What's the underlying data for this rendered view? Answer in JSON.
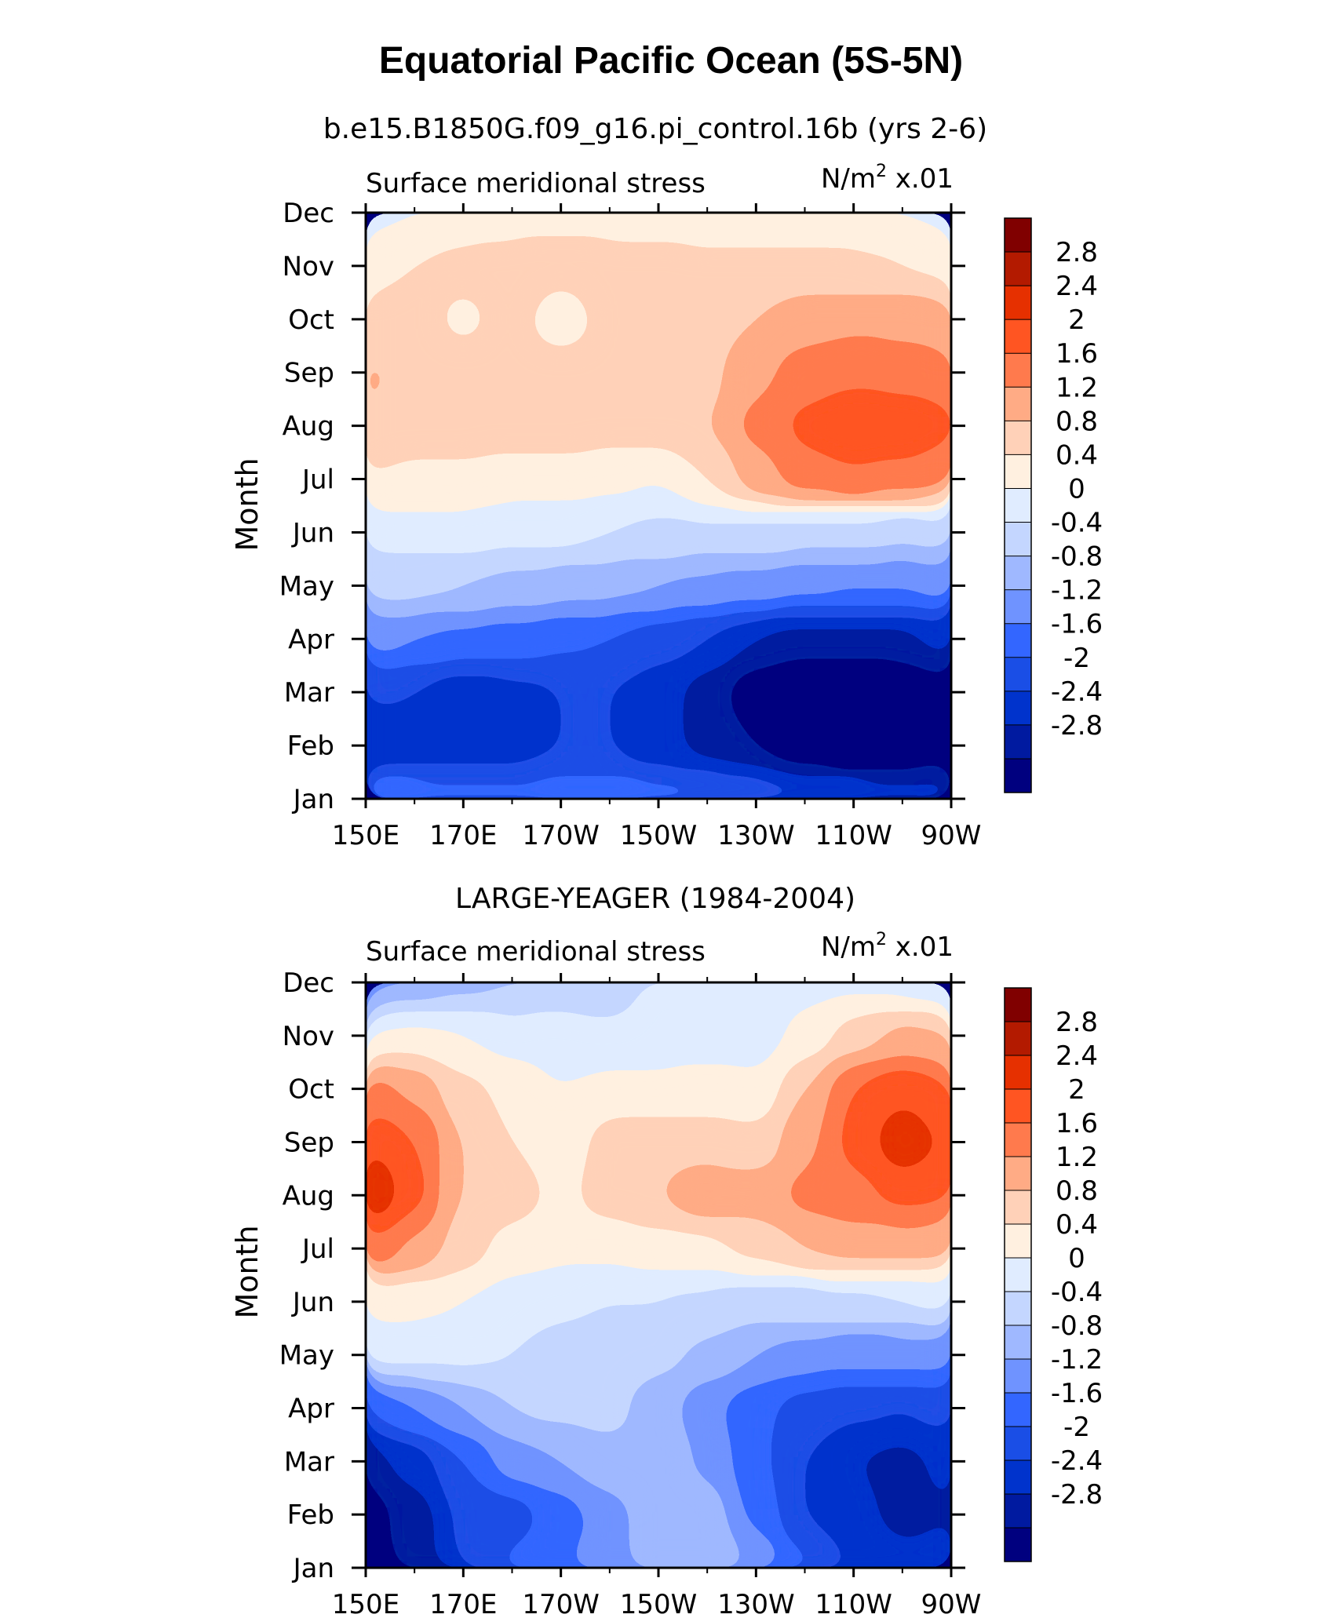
{
  "chart_data": {
    "type": "heatmap",
    "title": "Equatorial Pacific Ocean (5S-5N)",
    "x_tick_labels": [
      "150E",
      "170E",
      "170W",
      "150W",
      "130W",
      "110W",
      "90W"
    ],
    "y_tick_labels": [
      "Jan",
      "Feb",
      "Mar",
      "Apr",
      "May",
      "Jun",
      "Jul",
      "Aug",
      "Sep",
      "Oct",
      "Nov",
      "Dec"
    ],
    "contour_levels": [
      -2.8,
      -2.4,
      -2,
      -1.6,
      -1.2,
      -0.8,
      -0.4,
      0,
      0.4,
      0.8,
      1.2,
      1.6,
      2,
      2.4,
      2.8
    ],
    "colorbar_labels": [
      "2.8",
      "2.4",
      "2",
      "1.6",
      "1.2",
      "0.8",
      "0.4",
      "0",
      "-0.4",
      "-0.8",
      "-1.2",
      "-1.6",
      "-2",
      "-2.4",
      "-2.8"
    ],
    "colors": [
      "#00007f",
      "#001aa0",
      "#0033cc",
      "#1a4ee6",
      "#3366ff",
      "#6f93ff",
      "#9fb8ff",
      "#c4d6ff",
      "#e0ecff",
      "#fff0e0",
      "#ffd1b8",
      "#ffab85",
      "#ff7a4d",
      "#ff5522",
      "#e63000",
      "#b31a00",
      "#800000"
    ],
    "panels": [
      {
        "subtitle": "b.e15.B1850G.f09_g16.pi_control.16b (yrs 2-6)",
        "left_label": "Surface meridional stress",
        "right_label": "N/m",
        "right_label_sup": "2",
        "right_label_suffix": " x.01",
        "ylabel": "Month",
        "grid_values": [
          [
            -1.2,
            -1.3,
            -1.35,
            -1.45,
            -1.3,
            -1.25,
            -1.35,
            -1.45,
            -1.6,
            -1.8,
            -1.9,
            -2.0,
            -2.1
          ],
          [
            -2.4,
            -2.2,
            -2.3,
            -2.2,
            -2.0,
            -2.0,
            -2.3,
            -2.5,
            -2.8,
            -3.2,
            -3.4,
            -3.3,
            -3.0
          ],
          [
            -1.9,
            -2.0,
            -2.3,
            -2.1,
            -2.0,
            -2.0,
            -2.2,
            -2.6,
            -3.1,
            -3.4,
            -3.4,
            -3.3,
            -2.9
          ],
          [
            -1.0,
            -1.2,
            -1.3,
            -1.4,
            -1.5,
            -1.6,
            -1.8,
            -2.0,
            -2.4,
            -2.6,
            -2.6,
            -2.5,
            -2.2
          ],
          [
            -0.3,
            -0.3,
            -0.4,
            -0.5,
            -0.6,
            -0.7,
            -0.8,
            -0.9,
            -1.0,
            -1.1,
            -1.2,
            -1.2,
            -1.0
          ],
          [
            0.2,
            0.2,
            0.2,
            0.1,
            0.1,
            0.0,
            -0.1,
            -0.1,
            -0.1,
            -0.2,
            -0.2,
            -0.3,
            -0.2
          ],
          [
            0.8,
            0.7,
            0.7,
            0.6,
            0.6,
            0.5,
            0.4,
            0.8,
            1.4,
            1.8,
            1.9,
            1.8,
            1.6
          ],
          [
            1.2,
            1.0,
            1.0,
            1.0,
            1.0,
            1.0,
            1.0,
            1.2,
            1.7,
            2.1,
            2.4,
            2.4,
            2.1
          ],
          [
            1.3,
            1.0,
            1.0,
            1.0,
            1.0,
            1.0,
            1.0,
            1.1,
            1.5,
            1.8,
            1.9,
            1.8,
            1.7
          ],
          [
            1.0,
            1.0,
            0.7,
            1.0,
            0.5,
            1.0,
            1.0,
            1.0,
            1.2,
            1.4,
            1.5,
            1.5,
            1.4
          ],
          [
            0.6,
            0.8,
            0.9,
            0.9,
            1.0,
            1.0,
            1.0,
            0.9,
            0.9,
            0.9,
            0.9,
            0.8,
            0.7
          ],
          [
            0.3,
            0.4,
            0.6,
            0.7,
            0.7,
            0.6,
            0.6,
            0.5,
            0.5,
            0.5,
            0.4,
            0.4,
            0.3
          ]
        ]
      },
      {
        "subtitle": "LARGE-YEAGER (1984-2004)",
        "left_label": "Surface meridional stress",
        "right_label": "N/m",
        "right_label_sup": "2",
        "right_label_suffix": " x.01",
        "ylabel": "Month",
        "grid_values": [
          [
            -3.0,
            -2.7,
            -2.0,
            -1.5,
            -1.2,
            -1.0,
            -0.5,
            -0.3,
            -0.8,
            -1.5,
            -2.0,
            -2.3,
            -2.2
          ],
          [
            -3.0,
            -2.6,
            -1.9,
            -1.8,
            -1.4,
            -1.0,
            -0.5,
            -0.6,
            -1.3,
            -2.0,
            -2.3,
            -2.5,
            -2.4
          ],
          [
            -2.6,
            -2.2,
            -1.6,
            -1.0,
            -0.8,
            -0.5,
            -0.4,
            -0.9,
            -1.5,
            -2.0,
            -2.4,
            -2.5,
            -2.3
          ],
          [
            -1.6,
            -1.2,
            -0.8,
            -0.4,
            -0.3,
            -0.3,
            -0.6,
            -1.1,
            -1.5,
            -1.8,
            -1.9,
            -2.0,
            -1.8
          ],
          [
            0.1,
            0.1,
            0.1,
            0.0,
            -0.2,
            -0.3,
            -0.3,
            -0.5,
            -0.8,
            -1.0,
            -1.1,
            -1.1,
            -1.0
          ],
          [
            0.6,
            0.5,
            0.4,
            0.2,
            0.1,
            0.0,
            0.0,
            -0.1,
            -0.2,
            -0.2,
            -0.1,
            0.0,
            0.1
          ],
          [
            2.0,
            1.5,
            1.0,
            0.6,
            0.5,
            0.5,
            0.6,
            0.7,
            0.9,
            1.2,
            1.3,
            1.3,
            1.3
          ],
          [
            3.0,
            2.1,
            1.2,
            1.0,
            0.7,
            1.0,
            1.2,
            1.5,
            1.4,
            1.7,
            1.9,
            2.1,
            2.0
          ],
          [
            2.4,
            2.0,
            1.2,
            0.8,
            0.5,
            1.0,
            1.1,
            1.0,
            0.9,
            1.5,
            2.1,
            2.7,
            2.3
          ],
          [
            1.8,
            1.5,
            0.9,
            0.7,
            0.4,
            0.5,
            0.5,
            0.6,
            0.5,
            1.2,
            2.0,
            2.3,
            2.0
          ],
          [
            0.4,
            0.5,
            0.4,
            0.2,
            0.2,
            0.1,
            0.2,
            0.1,
            0.2,
            0.5,
            1.0,
            1.3,
            1.2
          ],
          [
            -0.9,
            -0.7,
            -0.5,
            -0.4,
            -0.3,
            -0.3,
            0.1,
            0.2,
            0.3,
            0.3,
            0.3,
            0.2,
            0.0
          ]
        ]
      }
    ]
  }
}
